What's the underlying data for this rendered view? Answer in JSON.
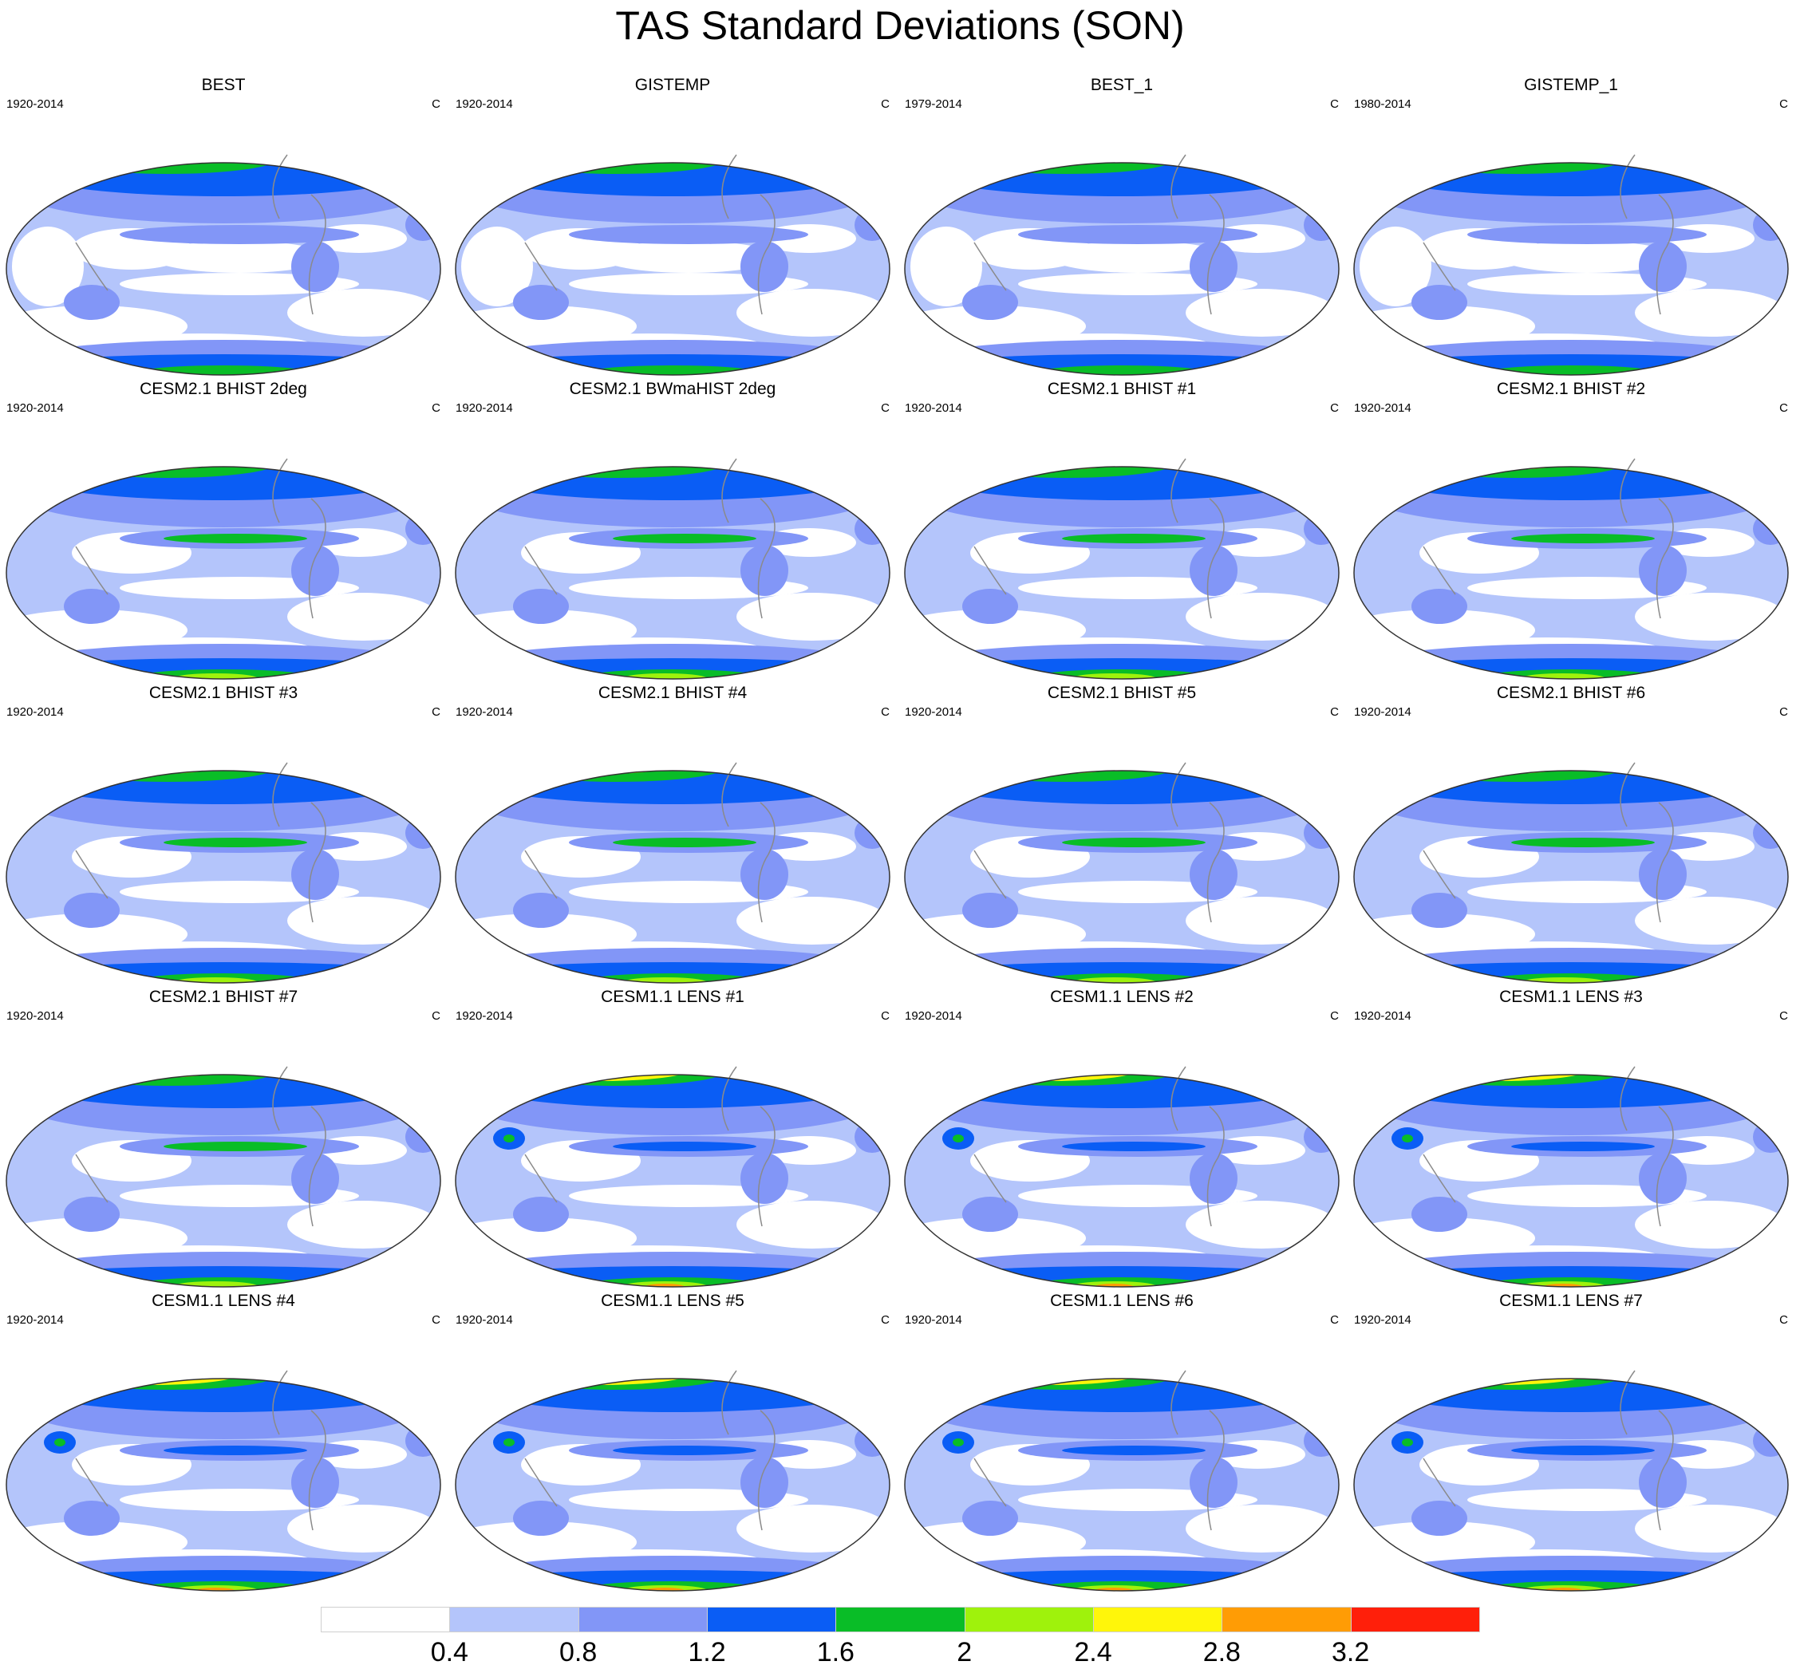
{
  "title": "TAS Standard Deviations (SON)",
  "units": "C",
  "panels": [
    {
      "title": "BEST",
      "period": "1920-2014",
      "units": "C",
      "kind": "obs",
      "intensity": 0
    },
    {
      "title": "GISTEMP",
      "period": "1920-2014",
      "units": "C",
      "kind": "obs",
      "intensity": 0
    },
    {
      "title": "BEST_1",
      "period": "1979-2014",
      "units": "C",
      "kind": "obs",
      "intensity": 0
    },
    {
      "title": "GISTEMP_1",
      "period": "1980-2014",
      "units": "C",
      "kind": "obs",
      "intensity": 0
    },
    {
      "title": "CESM2.1 BHIST 2deg",
      "period": "1920-2014",
      "units": "C",
      "kind": "cesm2",
      "intensity": 1
    },
    {
      "title": "CESM2.1 BWmaHIST 2deg",
      "period": "1920-2014",
      "units": "C",
      "kind": "cesm2",
      "intensity": 1
    },
    {
      "title": "CESM2.1 BHIST #1",
      "period": "1920-2014",
      "units": "C",
      "kind": "cesm2",
      "intensity": 1
    },
    {
      "title": "CESM2.1 BHIST #2",
      "period": "1920-2014",
      "units": "C",
      "kind": "cesm2",
      "intensity": 1
    },
    {
      "title": "CESM2.1 BHIST #3",
      "period": "1920-2014",
      "units": "C",
      "kind": "cesm2",
      "intensity": 1
    },
    {
      "title": "CESM2.1 BHIST #4",
      "period": "1920-2014",
      "units": "C",
      "kind": "cesm2",
      "intensity": 1
    },
    {
      "title": "CESM2.1 BHIST #5",
      "period": "1920-2014",
      "units": "C",
      "kind": "cesm2",
      "intensity": 1
    },
    {
      "title": "CESM2.1 BHIST #6",
      "period": "1920-2014",
      "units": "C",
      "kind": "cesm2",
      "intensity": 1
    },
    {
      "title": "CESM2.1 BHIST #7",
      "period": "1920-2014",
      "units": "C",
      "kind": "cesm2",
      "intensity": 1
    },
    {
      "title": "CESM1.1 LENS #1",
      "period": "1920-2014",
      "units": "C",
      "kind": "lens",
      "intensity": 2
    },
    {
      "title": "CESM1.1 LENS #2",
      "period": "1920-2014",
      "units": "C",
      "kind": "lens",
      "intensity": 2
    },
    {
      "title": "CESM1.1 LENS #3",
      "period": "1920-2014",
      "units": "C",
      "kind": "lens",
      "intensity": 2
    },
    {
      "title": "CESM1.1 LENS #4",
      "period": "1920-2014",
      "units": "C",
      "kind": "lens",
      "intensity": 2
    },
    {
      "title": "CESM1.1 LENS #5",
      "period": "1920-2014",
      "units": "C",
      "kind": "lens",
      "intensity": 2
    },
    {
      "title": "CESM1.1 LENS #6",
      "period": "1920-2014",
      "units": "C",
      "kind": "lens",
      "intensity": 2
    },
    {
      "title": "CESM1.1 LENS #7",
      "period": "1920-2014",
      "units": "C",
      "kind": "lens",
      "intensity": 2
    }
  ],
  "colorbar": {
    "labels": [
      "0.4",
      "0.8",
      "1.2",
      "1.6",
      "2",
      "2.4",
      "2.8",
      "3.2"
    ],
    "colors": [
      "#ffffff",
      "#b4c5fb",
      "#8296f7",
      "#0a5df5",
      "#09bd27",
      "#9ff20c",
      "#fff60a",
      "#ff9c05",
      "#ff1f0a"
    ]
  }
}
